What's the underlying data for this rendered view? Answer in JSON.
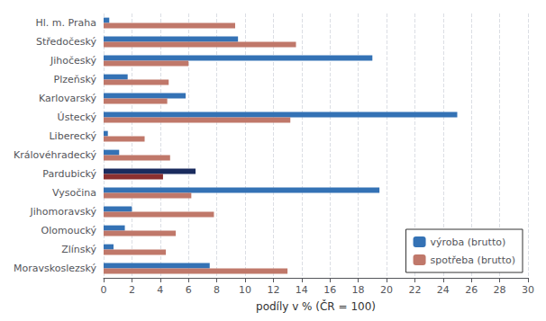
{
  "chart_data": {
    "type": "bar",
    "orientation": "horizontal",
    "categories": [
      "Moravskoslezský",
      "Zlínský",
      "Olomoucký",
      "Jihomoravský",
      "Vysočina",
      "Pardubický",
      "Královéhradecký",
      "Liberecký",
      "Ústecký",
      "Karlovarský",
      "Plzeňský",
      "Jihočeský",
      "Středočeský",
      "Hl. m. Praha"
    ],
    "series": [
      {
        "name": "výroba (brutto)",
        "color": "#3472B5",
        "colors": [
          "#3472B5",
          "#3472B5",
          "#3472B5",
          "#3472B5",
          "#3472B5",
          "#1A2B5E",
          "#3472B5",
          "#3472B5",
          "#3472B5",
          "#3472B5",
          "#3472B5",
          "#3472B5",
          "#3472B5",
          "#3472B5"
        ],
        "values": [
          7.5,
          0.7,
          1.5,
          2.0,
          19.5,
          6.5,
          1.1,
          0.3,
          25.0,
          5.8,
          1.7,
          19.0,
          9.5,
          0.4
        ]
      },
      {
        "name": "spotřeba (brutto)",
        "color": "#C0786A",
        "colors": [
          "#C0786A",
          "#C0786A",
          "#C0786A",
          "#C0786A",
          "#C0786A",
          "#8B3030",
          "#C0786A",
          "#C0786A",
          "#C0786A",
          "#C0786A",
          "#C0786A",
          "#C0786A",
          "#C0786A",
          "#C0786A"
        ],
        "values": [
          13.0,
          4.4,
          5.1,
          7.8,
          6.2,
          4.2,
          4.7,
          2.9,
          13.2,
          4.5,
          4.6,
          6.0,
          13.6,
          9.3
        ]
      }
    ],
    "xlabel": "podíly v % (ČR = 100)",
    "xlim": [
      0,
      30
    ],
    "xticks": [
      0,
      2,
      4,
      6,
      8,
      10,
      12,
      14,
      16,
      18,
      20,
      22,
      24,
      26,
      28,
      30
    ],
    "grid": true,
    "legend": "lower right"
  }
}
